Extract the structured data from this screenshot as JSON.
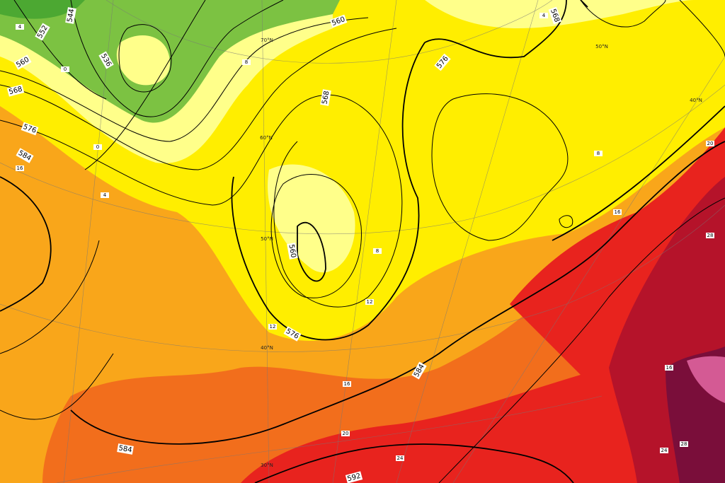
{
  "map": {
    "contour_labels": [
      "544",
      "552",
      "560",
      "568",
      "576",
      "584",
      "536",
      "560",
      "568",
      "576",
      "568",
      "560",
      "576",
      "584",
      "584",
      "592"
    ],
    "isotherm_labels": [
      "4",
      "0",
      "8",
      "4",
      "0",
      "4",
      "8",
      "16",
      "12",
      "12",
      "8",
      "16",
      "20",
      "24",
      "20",
      "28",
      "16",
      "24",
      "28",
      "16"
    ],
    "latitude_labels": [
      "70°N",
      "60°N",
      "50°N",
      "40°N",
      "30°N",
      "50°N",
      "40°N"
    ]
  }
}
